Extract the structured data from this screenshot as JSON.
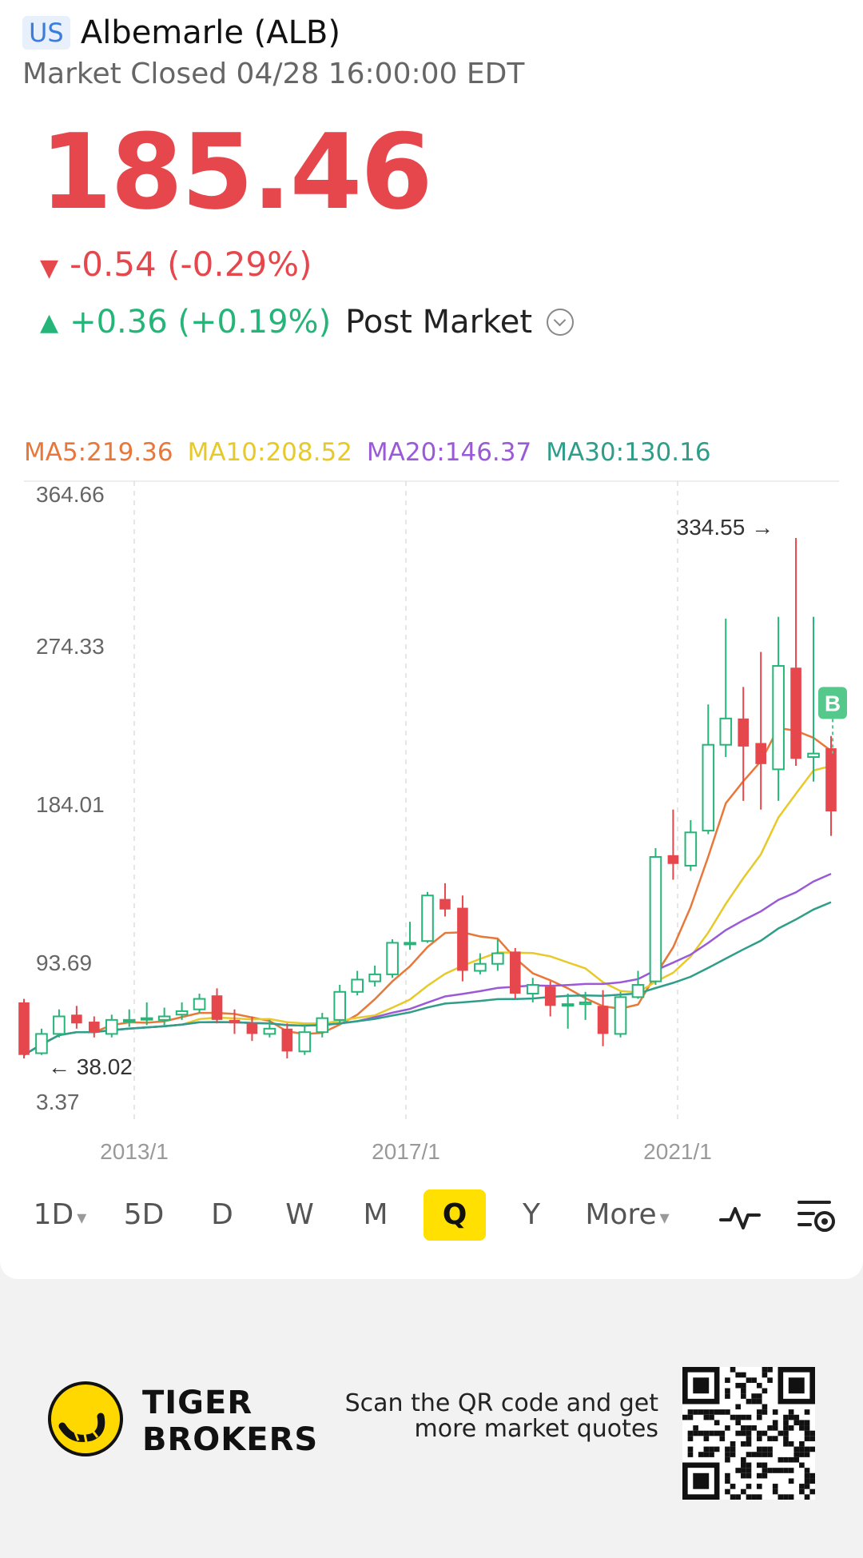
{
  "header": {
    "market_tag": "US",
    "title": "Albemarle (ALB)",
    "status": "Market Closed 04/28 16:00:00 EDT"
  },
  "quote": {
    "price": "185.46",
    "change": "-0.54 (-0.29%)",
    "post_change": "+0.36 (+0.19%)",
    "post_label": "Post Market"
  },
  "ma_legend": [
    {
      "label": "MA5:219.36",
      "color": "#e8783a"
    },
    {
      "label": "MA10:208.52",
      "color": "#e8c92a"
    },
    {
      "label": "MA20:146.37",
      "color": "#9a5ad8"
    },
    {
      "label": "MA30:130.16",
      "color": "#2e9e8a"
    }
  ],
  "chart_data": {
    "type": "candlestick",
    "y_ticks": [
      "364.66",
      "274.33",
      "184.01",
      "93.69",
      "3.37"
    ],
    "x_ticks": [
      "2013/1",
      "2017/1",
      "2021/1"
    ],
    "ylim": [
      3.37,
      364.66
    ],
    "max_label": "334.55",
    "min_label": "38.02",
    "signal_badge": "B",
    "candles": [
      {
        "o": 70,
        "c": 40,
        "h": 72,
        "l": 38
      },
      {
        "o": 41,
        "c": 52,
        "h": 55,
        "l": 40
      },
      {
        "o": 52,
        "c": 62,
        "h": 66,
        "l": 50
      },
      {
        "o": 63,
        "c": 58,
        "h": 68,
        "l": 55
      },
      {
        "o": 59,
        "c": 53,
        "h": 62,
        "l": 50
      },
      {
        "o": 52,
        "c": 60,
        "h": 63,
        "l": 50
      },
      {
        "o": 60,
        "c": 60,
        "h": 66,
        "l": 56
      },
      {
        "o": 61,
        "c": 61,
        "h": 70,
        "l": 57
      },
      {
        "o": 60,
        "c": 62,
        "h": 67,
        "l": 57
      },
      {
        "o": 63,
        "c": 65,
        "h": 70,
        "l": 60
      },
      {
        "o": 66,
        "c": 72,
        "h": 75,
        "l": 64
      },
      {
        "o": 74,
        "c": 60,
        "h": 78,
        "l": 58
      },
      {
        "o": 60,
        "c": 58,
        "h": 66,
        "l": 52
      },
      {
        "o": 58,
        "c": 52,
        "h": 62,
        "l": 48
      },
      {
        "o": 52,
        "c": 55,
        "h": 60,
        "l": 50
      },
      {
        "o": 55,
        "c": 42,
        "h": 58,
        "l": 38
      },
      {
        "o": 42,
        "c": 53,
        "h": 57,
        "l": 40
      },
      {
        "o": 53,
        "c": 61,
        "h": 64,
        "l": 50
      },
      {
        "o": 60,
        "c": 76,
        "h": 80,
        "l": 58
      },
      {
        "o": 76,
        "c": 83,
        "h": 88,
        "l": 74
      },
      {
        "o": 82,
        "c": 86,
        "h": 91,
        "l": 79
      },
      {
        "o": 86,
        "c": 104,
        "h": 106,
        "l": 84
      },
      {
        "o": 104,
        "c": 104,
        "h": 116,
        "l": 100
      },
      {
        "o": 105,
        "c": 131,
        "h": 133,
        "l": 104
      },
      {
        "o": 129,
        "c": 123,
        "h": 138,
        "l": 119
      },
      {
        "o": 124,
        "c": 88,
        "h": 131,
        "l": 82
      },
      {
        "o": 88,
        "c": 92,
        "h": 98,
        "l": 86
      },
      {
        "o": 92,
        "c": 98,
        "h": 106,
        "l": 88
      },
      {
        "o": 99,
        "c": 75,
        "h": 101,
        "l": 72
      },
      {
        "o": 75,
        "c": 80,
        "h": 84,
        "l": 70
      },
      {
        "o": 79,
        "c": 68,
        "h": 82,
        "l": 62
      },
      {
        "o": 69,
        "c": 69,
        "h": 75,
        "l": 55
      },
      {
        "o": 69,
        "c": 70,
        "h": 76,
        "l": 60
      },
      {
        "o": 68,
        "c": 52,
        "h": 77,
        "l": 45
      },
      {
        "o": 52,
        "c": 73,
        "h": 76,
        "l": 50
      },
      {
        "o": 73,
        "c": 80,
        "h": 88,
        "l": 72
      },
      {
        "o": 82,
        "c": 153,
        "h": 158,
        "l": 80
      },
      {
        "o": 154,
        "c": 149,
        "h": 180,
        "l": 140
      },
      {
        "o": 148,
        "c": 167,
        "h": 174,
        "l": 145
      },
      {
        "o": 168,
        "c": 217,
        "h": 240,
        "l": 166
      },
      {
        "o": 217,
        "c": 232,
        "h": 289,
        "l": 210
      },
      {
        "o": 232,
        "c": 216,
        "h": 250,
        "l": 185
      },
      {
        "o": 218,
        "c": 206,
        "h": 270,
        "l": 180
      },
      {
        "o": 203,
        "c": 262,
        "h": 290,
        "l": 185
      },
      {
        "o": 261,
        "c": 209,
        "h": 335,
        "l": 205
      },
      {
        "o": 210,
        "c": 212,
        "h": 290,
        "l": 196
      },
      {
        "o": 215,
        "c": 179,
        "h": 222,
        "l": 165
      }
    ]
  },
  "timeframes": [
    {
      "label": "1D",
      "caret": true
    },
    {
      "label": "5D"
    },
    {
      "label": "D"
    },
    {
      "label": "W"
    },
    {
      "label": "M"
    },
    {
      "label": "Q",
      "active": true
    },
    {
      "label": "Y"
    },
    {
      "label": "More",
      "caret": true
    }
  ],
  "footer": {
    "brand_line1": "TIGER",
    "brand_line2": "BROKERS",
    "scan_line1": "Scan the QR code and get",
    "scan_line2": "more market quotes"
  }
}
